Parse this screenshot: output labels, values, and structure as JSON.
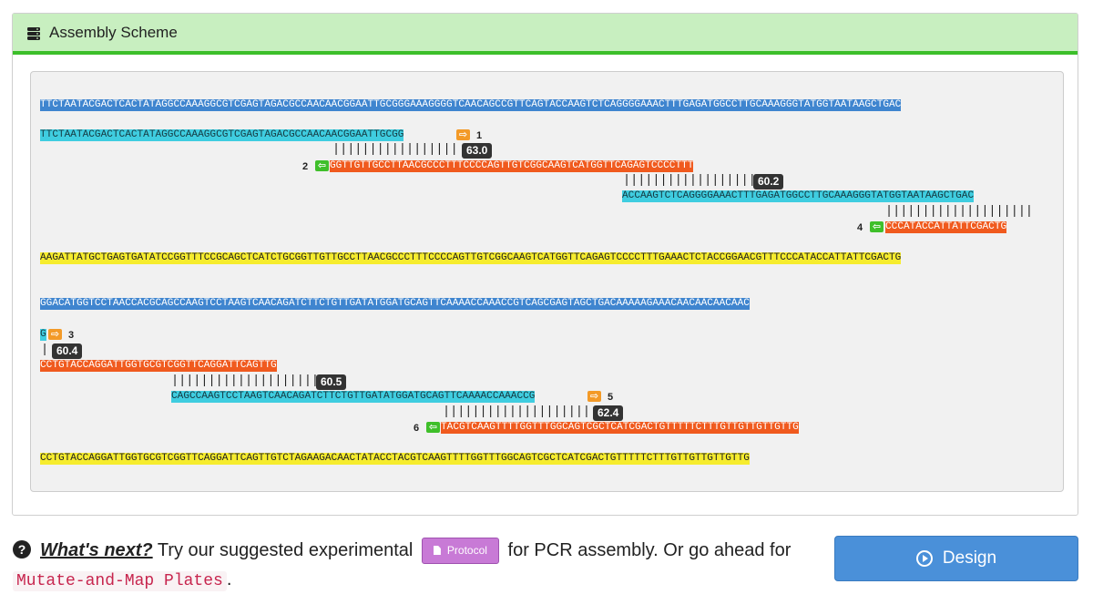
{
  "panel": {
    "title": "Assembly Scheme",
    "icon": "database-icon"
  },
  "blocks": [
    {
      "template": "TTCTAATACGACTCACTATAGGCCAAAGGCGTCGAGTAGACGCCAACAACGGAATTGCGGGAAAGGGGTCAACAGCCGTTCAGTACCAAGTCTCAGGGGAAACTTTGAGATGGCCTTGCAAAGGGTATGGTAATAAGCTGAC",
      "primer1": {
        "seq": "TTCTAATACGACTCACTATAGGCCAAAGGCGTCGAGTAGACGCCAACAACGGAATTGCGG",
        "num": "1"
      },
      "bars1": "|||||||||||||||||",
      "tm1": "63.0",
      "primer2": {
        "seq": "GGTTGTTGCCTTAACGCCCTTTCCCCAGTTGTCGGCAAGTCATGGTTCAGAGTCCCCTTT",
        "num": "2"
      },
      "bars2": "||||||||||||||||||",
      "tm2": "60.2",
      "primer3": {
        "seq": "ACCAAGTCTCAGGGGAAACTTTGAGATGGCCTTGCAAAGGGTATGGTAATAAGCTGAC"
      },
      "bars3": "||||||||||||||||||||",
      "primer4": {
        "seq": "CCCATACCATTATTCGACTG",
        "num": "4"
      },
      "complement": "AAGATTATGCTGAGTGATATCCGGTTTCCGCAGCTCATCTGCGGTTGTTGCCTTAACGCCCTTTCCCCAGTTGTCGGCAAGTCATGGTTCAGAGTCCCCTTTGAAACTCTACCGGAACGTTTCCCATACCATTATTCGACTG"
    },
    {
      "template": "GGACATGGTCCTAACCACGCAGCCAAGTCCTAAGTCAACAGATCTTCTGTTGATATGGATGCAGTTCAAAACCAAACCGTCAGCGAGTAGCTGACAAAAAGAAACAACAACAACAAC",
      "primer3": {
        "seq": "G",
        "num": "3"
      },
      "bars1": "|",
      "tm1": "60.4",
      "primer4": {
        "seq": "CCTGTACCAGGATTGGTGCGTCGGTTCAGGATTCAGTTG"
      },
      "bars2": "||||||||||||||||||||",
      "tm2": "60.5",
      "primer5": {
        "seq": "CAGCCAAGTCCTAAGTCAACAGATCTTCTGTTGATATGGATGCAGTTCAAAACCAAACCG",
        "num": "5"
      },
      "bars3": "||||||||||||||||||||",
      "tm3": "62.4",
      "primer6": {
        "seq": "TACGTCAAGTTTTGGTTTGGCAGTCGCTCATCGACTGTTTTTCTTTGTTGTTGTTGTTG",
        "num": "6"
      },
      "complement": "CCTGTACCAGGATTGGTGCGTCGGTTCAGGATTCAGTTGTCTAGAAGACAACTATACCTACGTCAAGTTTTGGTTTGGCAGTCGCTCATCGACTGTTTTTCTTTGTTGTTGTTGTTG"
    }
  ],
  "footer": {
    "icon": "question-circle-icon",
    "whats_next": "What's next?",
    "text_before": " Try our suggested experimental ",
    "protocol_label": "Protocol",
    "protocol_icon": "file-icon",
    "text_middle": " for PCR assembly. Or go ahead for ",
    "code": "Mutate-and-Map Plates",
    "text_after": "."
  },
  "design_button": {
    "label": "Design",
    "icon": "play-circle-icon"
  },
  "colors": {
    "template": "#3f85cf",
    "forward": "#3fcde0",
    "reverse": "#f05a1e",
    "complement": "#f6ec2e",
    "header": "#c8efc0",
    "design": "#4a90d9",
    "protocol": "#c87ad6"
  }
}
